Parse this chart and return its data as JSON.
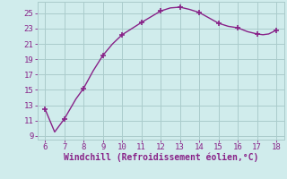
{
  "x": [
    6,
    6.5,
    7,
    7.3,
    7.6,
    8,
    8.5,
    9,
    9.5,
    10,
    11,
    12,
    12.5,
    13,
    13.5,
    14,
    14.5,
    15,
    15.5,
    16,
    16.5,
    17,
    17.3,
    17.6,
    18
  ],
  "y": [
    12.5,
    9.5,
    11.2,
    12.5,
    13.8,
    15.2,
    17.5,
    19.5,
    21.0,
    22.2,
    23.8,
    25.3,
    25.7,
    25.8,
    25.5,
    25.1,
    24.4,
    23.7,
    23.3,
    23.1,
    22.6,
    22.3,
    22.2,
    22.3,
    22.8
  ],
  "marker_x": [
    6,
    7,
    8,
    9,
    10,
    11,
    12,
    13,
    14,
    15,
    16,
    17,
    18
  ],
  "marker_y": [
    12.5,
    11.2,
    15.2,
    19.5,
    22.2,
    23.8,
    25.3,
    25.8,
    25.1,
    23.7,
    23.1,
    22.3,
    22.8
  ],
  "line_color": "#882288",
  "marker_color": "#882288",
  "bg_color": "#d0ecec",
  "grid_color": "#aacccc",
  "xlabel": "Windchill (Refroidissement éolien,°C)",
  "xlabel_color": "#882288",
  "xlim": [
    5.6,
    18.4
  ],
  "ylim": [
    8.5,
    26.5
  ],
  "xticks": [
    6,
    7,
    8,
    9,
    10,
    11,
    12,
    13,
    14,
    15,
    16,
    17,
    18
  ],
  "yticks": [
    9,
    11,
    13,
    15,
    17,
    19,
    21,
    23,
    25
  ],
  "tick_color": "#882288",
  "tick_fontsize": 6.5,
  "xlabel_fontsize": 7.0
}
